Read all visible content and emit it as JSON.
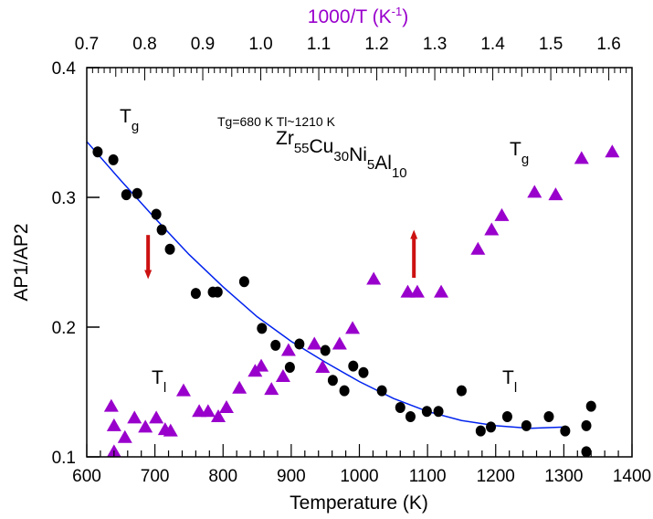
{
  "chart_data": {
    "type": "scatter",
    "xlabel": "Temperature (K)",
    "ylabel": "AP1/AP2",
    "top_xlabel": "1000/T (K",
    "top_xlabel_sup": "-1",
    "top_xlabel_end": ")",
    "xlim": [
      600,
      1400
    ],
    "ylim": [
      0.1,
      0.4
    ],
    "top_xlim": [
      0.7,
      1.64
    ],
    "x_ticks": [
      "600",
      "700",
      "800",
      "900",
      "1000",
      "1100",
      "1200",
      "1300",
      "1400"
    ],
    "y_ticks": [
      "0.1",
      "0.2",
      "0.3",
      "0.4"
    ],
    "top_ticks": [
      "0.7",
      "0.8",
      "0.9",
      "1.0",
      "1.1",
      "1.2",
      "1.3",
      "1.4",
      "1.5",
      "1.6"
    ],
    "grid": false,
    "colors": {
      "circles": "#000000",
      "triangles": "#9900cc",
      "fit": "#0022ee",
      "arrows": "#cc1111",
      "top_axis_label": "#9900cc"
    },
    "annotations": {
      "temps": "Tg=680 K   Tl~1210 K",
      "composition": [
        [
          "Zr",
          "55"
        ],
        [
          "Cu",
          "30"
        ],
        [
          "Ni",
          "5"
        ],
        [
          "Al",
          "10"
        ]
      ],
      "tg_left": [
        "T",
        "g"
      ],
      "tl_left": [
        "T",
        "l"
      ],
      "tg_right": [
        "T",
        "g"
      ],
      "tl_right": [
        "T",
        "l"
      ]
    },
    "series": [
      {
        "marker": "circle",
        "x": [
          616,
          639,
          658,
          674,
          702,
          710,
          722,
          760,
          785,
          792,
          831,
          857,
          877,
          898,
          912,
          950,
          961,
          978,
          991,
          1006,
          1033,
          1060,
          1075,
          1099,
          1116,
          1150,
          1178,
          1193,
          1217,
          1245,
          1278,
          1302,
          1333,
          1333,
          1340
        ],
        "y": [
          0.335,
          0.329,
          0.302,
          0.303,
          0.287,
          0.275,
          0.26,
          0.226,
          0.227,
          0.227,
          0.235,
          0.199,
          0.186,
          0.169,
          0.187,
          0.182,
          0.159,
          0.151,
          0.17,
          0.165,
          0.151,
          0.138,
          0.131,
          0.135,
          0.135,
          0.151,
          0.12,
          0.123,
          0.131,
          0.124,
          0.131,
          0.12,
          0.124,
          0.104,
          0.139
        ]
      },
      {
        "marker": "triangle",
        "x": [
          636,
          640,
          640,
          656,
          670,
          686,
          702,
          715,
          723,
          742,
          765,
          778,
          793,
          805,
          824,
          847,
          856,
          871,
          888,
          896,
          934,
          946,
          971,
          990,
          1021,
          1071,
          1085,
          1120,
          1174,
          1194,
          1209,
          1257,
          1288,
          1326,
          1371
        ],
        "y": [
          0.139,
          0.124,
          0.104,
          0.115,
          0.13,
          0.123,
          0.13,
          0.121,
          0.12,
          0.151,
          0.135,
          0.135,
          0.131,
          0.138,
          0.153,
          0.166,
          0.17,
          0.152,
          0.162,
          0.182,
          0.187,
          0.169,
          0.187,
          0.199,
          0.237,
          0.227,
          0.227,
          0.227,
          0.26,
          0.275,
          0.286,
          0.304,
          0.302,
          0.33,
          0.335
        ]
      },
      {
        "marker": "line",
        "x": [
          600,
          650,
          700,
          750,
          800,
          850,
          900,
          950,
          1000,
          1050,
          1100,
          1150,
          1200,
          1250,
          1300
        ],
        "y": [
          0.343,
          0.313,
          0.284,
          0.256,
          0.231,
          0.208,
          0.189,
          0.173,
          0.158,
          0.145,
          0.135,
          0.128,
          0.124,
          0.122,
          0.123
        ]
      }
    ],
    "arrows": [
      {
        "x": 690,
        "y_from": 0.271,
        "y_to": 0.237,
        "direction": "down"
      },
      {
        "x": 1080,
        "y_from": 0.238,
        "y_to": 0.275,
        "direction": "up"
      }
    ]
  }
}
